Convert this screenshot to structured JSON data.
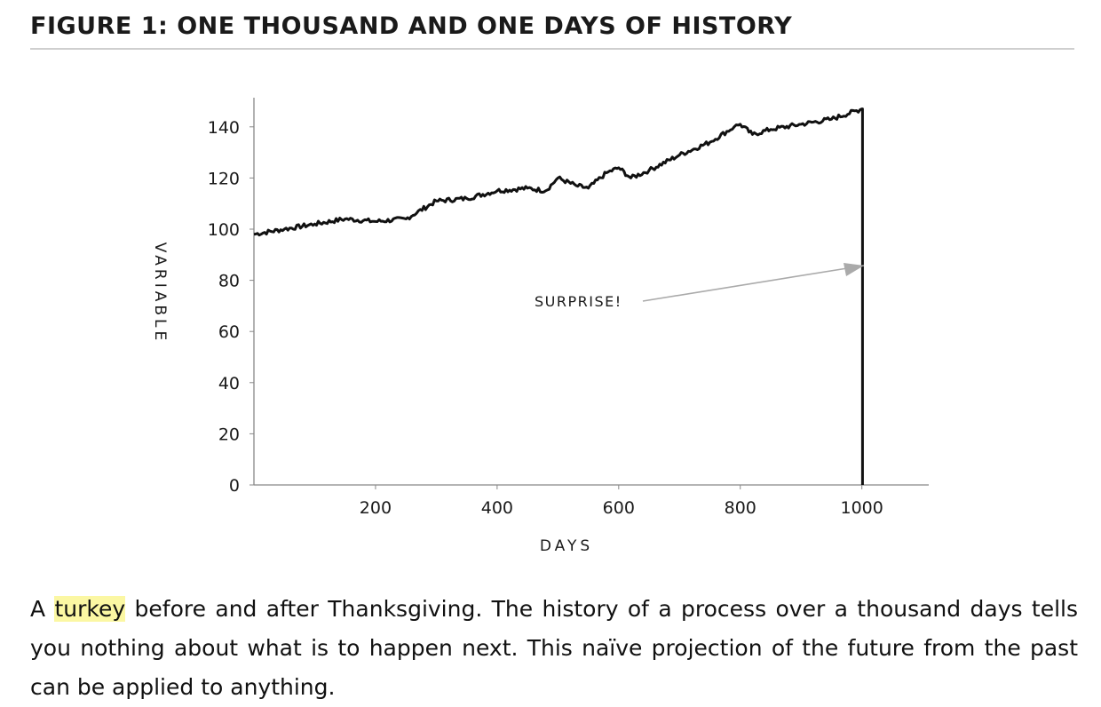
{
  "figure": {
    "title": "FIGURE 1: ONE THOUSAND AND ONE DAYS OF HISTORY"
  },
  "caption": {
    "lead": "A ",
    "highlight": "turkey",
    "rest": " before and after Thanksgiving. The history of a process over a thousand days tells you nothing about what is to happen next. This naïve projection of the future from the past can be applied to anything."
  },
  "colors": {
    "line": "#111111",
    "axis": "#888888",
    "arrow": "#aaaaaa",
    "highlight": "#fbf7a3"
  },
  "chart_data": {
    "type": "line",
    "title": "",
    "xlabel": "DAYS",
    "ylabel": "VARIABLE",
    "xlim": [
      0,
      1110
    ],
    "ylim": [
      0,
      150
    ],
    "xticks": [
      200,
      400,
      600,
      800,
      1000
    ],
    "yticks": [
      0,
      20,
      40,
      60,
      80,
      100,
      120,
      140
    ],
    "grid": false,
    "legend": "none",
    "series": [
      {
        "x": [
          0,
          50,
          100,
          150,
          200,
          250,
          300,
          350,
          400,
          450,
          480,
          500,
          530,
          550,
          580,
          600,
          620,
          650,
          700,
          750,
          790,
          800,
          820,
          850,
          900,
          950,
          1000,
          1001,
          1001
        ],
        "y": [
          98,
          100,
          102,
          104,
          103,
          104,
          111,
          112,
          115,
          116,
          115,
          120,
          117,
          116,
          122,
          124,
          120,
          123,
          129,
          134,
          140,
          141,
          137,
          139,
          141,
          143,
          147,
          147,
          0
        ]
      }
    ],
    "annotations": [
      {
        "text": "SURPRISE!",
        "x": 600,
        "y": 71,
        "arrow_to": [
          995,
          84
        ]
      }
    ]
  }
}
